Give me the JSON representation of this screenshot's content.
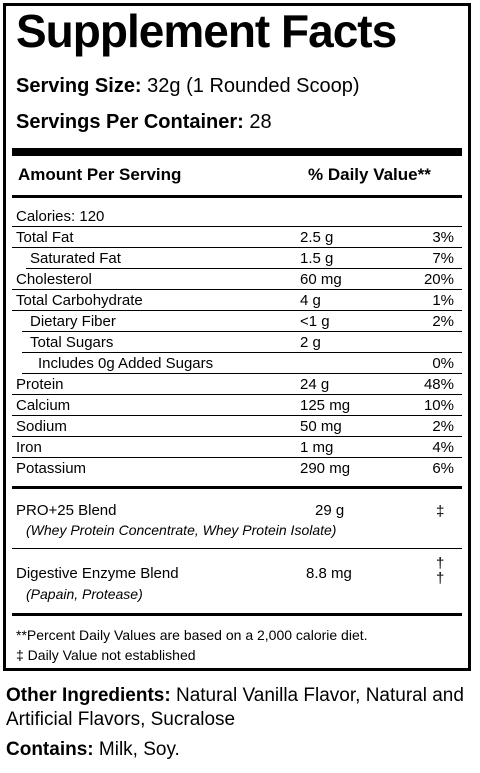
{
  "title": "Supplement Facts",
  "serving_size_label": "Serving Size:",
  "serving_size_value": "32g (1 Rounded Scoop)",
  "servings_label": "Servings Per Container:",
  "servings_value": "28",
  "header_amount": "Amount Per Serving",
  "header_dv": "% Daily Value**",
  "calories": "Calories: 120",
  "nutrients": [
    {
      "name": "Total Fat",
      "amount": "2.5 g",
      "dv": "3%"
    },
    {
      "name": "Saturated Fat",
      "amount": "1.5 g",
      "dv": "7%"
    },
    {
      "name": "Cholesterol",
      "amount": "60 mg",
      "dv": "20%"
    },
    {
      "name": "Total Carbohydrate",
      "amount": "4 g",
      "dv": "1%"
    },
    {
      "name": "Dietary Fiber",
      "amount": "<1 g",
      "dv": "2%"
    },
    {
      "name": "Total Sugars",
      "amount": "2 g",
      "dv": ""
    },
    {
      "name": "Includes 0g Added Sugars",
      "amount": "",
      "dv": "0%"
    },
    {
      "name": "Protein",
      "amount": "24 g",
      "dv": "48%"
    },
    {
      "name": "Calcium",
      "amount": "125 mg",
      "dv": "10%"
    },
    {
      "name": "Sodium",
      "amount": "50 mg",
      "dv": "2%"
    },
    {
      "name": "Iron",
      "amount": "1 mg",
      "dv": "4%"
    },
    {
      "name": "Potassium",
      "amount": "290 mg",
      "dv": "6%"
    }
  ],
  "blends": [
    {
      "name": "PRO+25 Blend",
      "amount": "29 g",
      "dv": "‡",
      "sub": "(Whey Protein Concentrate, Whey Protein Isolate)"
    },
    {
      "name": "Digestive Enzyme Blend",
      "amount": "8.8 mg",
      "dv": "†\n†",
      "sub": "(Papain, Protease)"
    }
  ],
  "footnote_1": "**Percent Daily Values are based on a 2,000 calorie diet.",
  "footnote_2": "‡ Daily Value not established",
  "other_label": "Other Ingredients:",
  "other_value": "Natural Vanilla Flavor, Natural and Artificial Flavors, Sucralose",
  "contains_label": "Contains:",
  "contains_value": "Milk, Soy."
}
